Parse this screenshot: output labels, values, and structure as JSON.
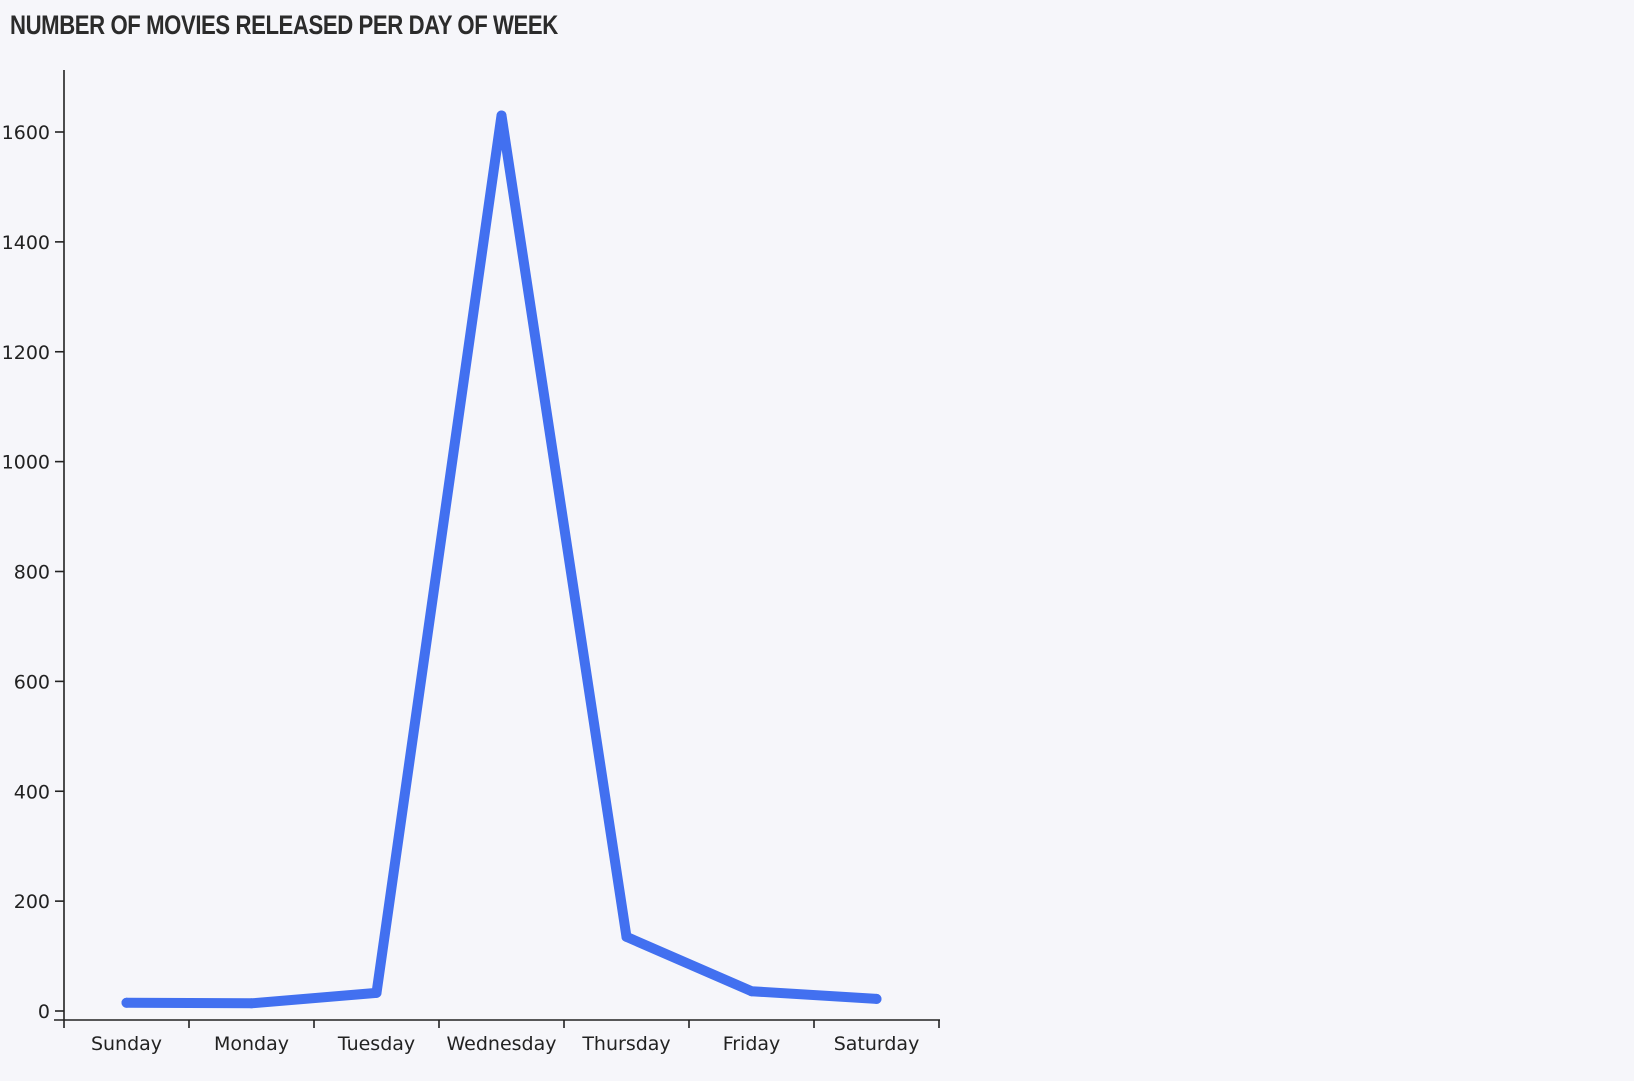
{
  "chart_data": {
    "type": "line",
    "title": "NUMBER OF MOVIES RELEASED PER DAY OF WEEK",
    "xlabel": "",
    "ylabel": "",
    "categories": [
      "Sunday",
      "Monday",
      "Tuesday",
      "Wednesday",
      "Thursday",
      "Friday",
      "Saturday"
    ],
    "values": [
      15,
      14,
      33,
      1630,
      135,
      36,
      22
    ],
    "ylim": [
      0,
      1720
    ],
    "yticks": [
      0,
      200,
      400,
      600,
      800,
      1000,
      1200,
      1400,
      1600
    ],
    "grid": false,
    "legend": "none",
    "line_color": "#4270f0",
    "axis_color": "#222222",
    "background": "#f6f6fa"
  }
}
